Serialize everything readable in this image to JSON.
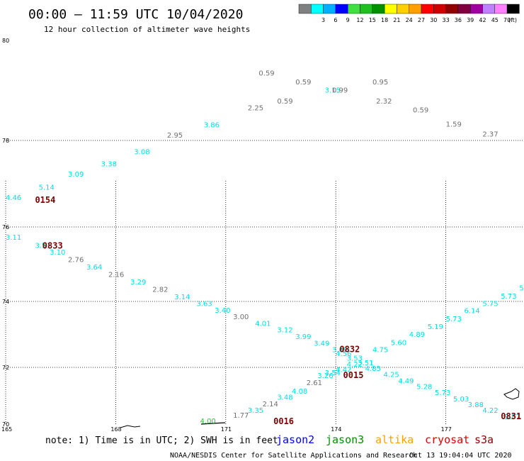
{
  "header": {
    "title": "00:00 – 11:59 UTC 10/04/2020",
    "subtitle": "12 hour collection of altimeter wave heights"
  },
  "color_scale": {
    "unit": "(ft)",
    "bins": [
      {
        "label": "",
        "color": "#808080"
      },
      {
        "label": "3",
        "color": "#00ffff"
      },
      {
        "label": "6",
        "color": "#00b0ff"
      },
      {
        "label": "9",
        "color": "#0000ff"
      },
      {
        "label": "12",
        "color": "#40e040"
      },
      {
        "label": "15",
        "color": "#20c020"
      },
      {
        "label": "18",
        "color": "#009000"
      },
      {
        "label": "21",
        "color": "#ffff00"
      },
      {
        "label": "24",
        "color": "#ffd000"
      },
      {
        "label": "27",
        "color": "#ffa000"
      },
      {
        "label": "30",
        "color": "#ff0000"
      },
      {
        "label": "33",
        "color": "#d00000"
      },
      {
        "label": "36",
        "color": "#900000"
      },
      {
        "label": "39",
        "color": "#800040"
      },
      {
        "label": "42",
        "color": "#a000a0"
      },
      {
        "label": "45",
        "color": "#c080ff"
      },
      {
        "label": "70",
        "color": "#ff80ff"
      },
      {
        "label": "",
        "color": "#000000"
      }
    ]
  },
  "axes": {
    "lat_labels": [
      "80",
      "78",
      "76",
      "74",
      "72",
      "70"
    ],
    "lon_labels": [
      "165",
      "168",
      "171",
      "174",
      "177"
    ]
  },
  "observations": [
    {
      "v": "0.59",
      "lon": 171.9,
      "lat": 79.3,
      "c": "gray"
    },
    {
      "v": "0.59",
      "lon": 172.9,
      "lat": 79.12,
      "c": "gray"
    },
    {
      "v": "0.59",
      "lon": 172.4,
      "lat": 78.74,
      "c": "gray"
    },
    {
      "v": "3.15",
      "lon": 173.7,
      "lat": 78.96,
      "c": "cyan"
    },
    {
      "v": "0.99",
      "lon": 173.9,
      "lat": 78.96,
      "c": "gray"
    },
    {
      "v": "0.95",
      "lon": 175.0,
      "lat": 79.12,
      "c": "gray"
    },
    {
      "v": "2.32",
      "lon": 175.1,
      "lat": 78.74,
      "c": "gray"
    },
    {
      "v": "0.59",
      "lon": 176.1,
      "lat": 78.56,
      "c": "gray"
    },
    {
      "v": "1.59",
      "lon": 177.0,
      "lat": 78.28,
      "c": "gray"
    },
    {
      "v": "2.37",
      "lon": 178.0,
      "lat": 78.08,
      "c": "gray"
    },
    {
      "v": "2.25",
      "lon": 171.6,
      "lat": 78.6,
      "c": "gray"
    },
    {
      "v": "3.86",
      "lon": 170.4,
      "lat": 78.26,
      "c": "cyan"
    },
    {
      "v": "2.95",
      "lon": 169.4,
      "lat": 78.06,
      "c": "gray"
    },
    {
      "v": "3.08",
      "lon": 168.5,
      "lat": 77.68,
      "c": "cyan"
    },
    {
      "v": "3.38",
      "lon": 167.6,
      "lat": 77.4,
      "c": "cyan"
    },
    {
      "v": "3.09",
      "lon": 166.7,
      "lat": 77.16,
      "c": "cyan"
    },
    {
      "v": "5.14",
      "lon": 165.9,
      "lat": 76.86,
      "c": "cyan"
    },
    {
      "v": "4.46",
      "lon": 165.0,
      "lat": 76.62,
      "c": "cyan"
    },
    {
      "v": "3.11",
      "lon": 165.0,
      "lat": 75.66,
      "c": "cyan"
    },
    {
      "v": "3.51",
      "lon": 165.8,
      "lat": 75.44,
      "c": "cyan"
    },
    {
      "v": "3.10",
      "lon": 166.2,
      "lat": 75.26,
      "c": "cyan"
    },
    {
      "v": "2.76",
      "lon": 166.7,
      "lat": 75.06,
      "c": "gray"
    },
    {
      "v": "3.64",
      "lon": 167.2,
      "lat": 74.86,
      "c": "cyan"
    },
    {
      "v": "2.16",
      "lon": 167.8,
      "lat": 74.66,
      "c": "gray"
    },
    {
      "v": "3.29",
      "lon": 168.4,
      "lat": 74.46,
      "c": "cyan"
    },
    {
      "v": "2.82",
      "lon": 169.0,
      "lat": 74.26,
      "c": "gray"
    },
    {
      "v": "3.14",
      "lon": 169.6,
      "lat": 74.06,
      "c": "cyan"
    },
    {
      "v": "3.63",
      "lon": 170.2,
      "lat": 73.86,
      "c": "cyan"
    },
    {
      "v": "3.40",
      "lon": 170.7,
      "lat": 73.66,
      "c": "cyan"
    },
    {
      "v": "3.00",
      "lon": 171.2,
      "lat": 73.46,
      "c": "gray"
    },
    {
      "v": "4.01",
      "lon": 171.8,
      "lat": 73.26,
      "c": "cyan"
    },
    {
      "v": "3.12",
      "lon": 172.4,
      "lat": 73.06,
      "c": "cyan"
    },
    {
      "v": "3.99",
      "lon": 172.9,
      "lat": 72.86,
      "c": "cyan"
    },
    {
      "v": "3.49",
      "lon": 173.4,
      "lat": 72.66,
      "c": "cyan"
    },
    {
      "v": "3.69",
      "lon": 173.9,
      "lat": 72.46,
      "c": "cyan"
    },
    {
      "v": "4.56",
      "lon": 174.0,
      "lat": 72.34,
      "c": "cyan"
    },
    {
      "v": "3.53",
      "lon": 174.3,
      "lat": 72.2,
      "c": "cyan"
    },
    {
      "v": "4.85",
      "lon": 174.8,
      "lat": 71.88,
      "c": "cyan"
    },
    {
      "v": "4.25",
      "lon": 175.3,
      "lat": 71.66,
      "c": "cyan"
    },
    {
      "v": "4.49",
      "lon": 175.7,
      "lat": 71.44,
      "c": "cyan"
    },
    {
      "v": "5.28",
      "lon": 176.2,
      "lat": 71.24,
      "c": "cyan"
    },
    {
      "v": "5.73",
      "lon": 176.7,
      "lat": 71.02,
      "c": "cyan"
    },
    {
      "v": "5.03",
      "lon": 177.2,
      "lat": 70.8,
      "c": "cyan"
    },
    {
      "v": "3.88",
      "lon": 177.6,
      "lat": 70.6,
      "c": "cyan"
    },
    {
      "v": "4.22",
      "lon": 178.0,
      "lat": 70.4,
      "c": "cyan"
    },
    {
      "v": "3.87",
      "lon": 178.6,
      "lat": 70.18,
      "c": "cyan"
    },
    {
      "v": "1.77",
      "lon": 171.2,
      "lat": 70.22,
      "c": "gray"
    },
    {
      "v": "3.35",
      "lon": 171.6,
      "lat": 70.4,
      "c": "cyan"
    },
    {
      "v": "2.14",
      "lon": 172.0,
      "lat": 70.62,
      "c": "gray"
    },
    {
      "v": "3.48",
      "lon": 172.4,
      "lat": 70.86,
      "c": "cyan"
    },
    {
      "v": "4.08",
      "lon": 172.8,
      "lat": 71.08,
      "c": "cyan"
    },
    {
      "v": "2.61",
      "lon": 173.2,
      "lat": 71.38,
      "c": "gray"
    },
    {
      "v": "3.26",
      "lon": 173.5,
      "lat": 71.62,
      "c": "cyan"
    },
    {
      "v": "3.54",
      "lon": 173.7,
      "lat": 71.72,
      "c": "cyan"
    },
    {
      "v": "4.42",
      "lon": 174.0,
      "lat": 71.84,
      "c": "cyan"
    },
    {
      "v": "4.22",
      "lon": 174.3,
      "lat": 72.02,
      "c": "cyan"
    },
    {
      "v": "3.51",
      "lon": 174.6,
      "lat": 72.06,
      "c": "cyan"
    },
    {
      "v": "4.75",
      "lon": 175.0,
      "lat": 72.46,
      "c": "cyan"
    },
    {
      "v": "5.60",
      "lon": 175.5,
      "lat": 72.68,
      "c": "cyan"
    },
    {
      "v": "4.89",
      "lon": 176.0,
      "lat": 72.92,
      "c": "cyan"
    },
    {
      "v": "5.19",
      "lon": 176.5,
      "lat": 73.16,
      "c": "cyan"
    },
    {
      "v": "5.73",
      "lon": 177.0,
      "lat": 73.4,
      "c": "cyan"
    },
    {
      "v": "6.14",
      "lon": 177.5,
      "lat": 73.64,
      "c": "cyan"
    },
    {
      "v": "5.75",
      "lon": 178.0,
      "lat": 73.86,
      "c": "cyan"
    },
    {
      "v": "5.73",
      "lon": 178.5,
      "lat": 74.08,
      "c": "cyan"
    },
    {
      "v": "5.93",
      "lon": 179.0,
      "lat": 74.3,
      "c": "cyan"
    },
    {
      "v": "4.00",
      "lon": 170.3,
      "lat": 70.02,
      "c": "green"
    }
  ],
  "pass_times": [
    {
      "t": "0154",
      "lon": 165.8,
      "lat": 76.56
    },
    {
      "t": "0833",
      "lon": 166.0,
      "lat": 75.42
    },
    {
      "t": "0832",
      "lon": 174.1,
      "lat": 72.46
    },
    {
      "t": "0015",
      "lon": 174.2,
      "lat": 71.62
    },
    {
      "t": "0016",
      "lon": 172.3,
      "lat": 70.0
    },
    {
      "t": "0831",
      "lon": 178.5,
      "lat": 70.18
    },
    {
      "t": "08",
      "lon": 179.4,
      "lat": 78.08
    }
  ],
  "footer": {
    "note": "note: 1) Time is in UTC; 2) SWH is in feet",
    "satellites": [
      {
        "name": "jason2",
        "color": "#0000ff"
      },
      {
        "name": "jason3",
        "color": "#009000"
      },
      {
        "name": "altika",
        "color": "#ffa000"
      },
      {
        "name": "cryosat",
        "color": "#e00000"
      },
      {
        "name": "s3a",
        "color": "#900000"
      }
    ],
    "credit": "NOAA/NESDIS Center for Satellite Applications and Research",
    "generated": "Oct 13 19:04:04 UTC 2020"
  }
}
